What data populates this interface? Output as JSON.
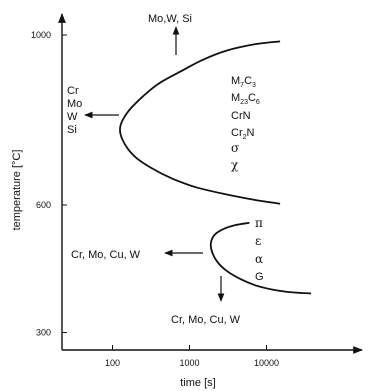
{
  "chart_data": {
    "type": "line",
    "xlabel": "time [s]",
    "ylabel": "temperature [°C]",
    "x_scale": "log",
    "xlim": [
      10,
      50000
    ],
    "ylim": [
      200,
      1100
    ],
    "x_ticks": [
      {
        "value": 100,
        "label": "100"
      },
      {
        "value": 1000,
        "label": "1000"
      },
      {
        "value": 10000,
        "label": "10000"
      }
    ],
    "y_ticks": [
      {
        "value": 300,
        "label": "300"
      },
      {
        "value": 600,
        "label": "600"
      },
      {
        "value": 1000,
        "label": "1000"
      }
    ],
    "series": [
      {
        "points": [
          [
            15000,
            985
          ],
          [
            7000,
            978
          ],
          [
            3000,
            963
          ],
          [
            1500,
            942
          ],
          [
            800,
            916
          ],
          [
            400,
            886
          ],
          [
            250,
            856
          ],
          [
            170,
            826
          ],
          [
            135,
            799
          ],
          [
            125,
            778
          ],
          [
            133,
            756
          ],
          [
            160,
            731
          ],
          [
            210,
            709
          ],
          [
            320,
            687
          ],
          [
            600,
            662
          ],
          [
            1200,
            642
          ],
          [
            3000,
            625
          ],
          [
            7000,
            612
          ],
          [
            15000,
            603
          ]
        ]
      },
      {
        "points": [
          [
            6000,
            558
          ],
          [
            4000,
            553
          ],
          [
            2800,
            544
          ],
          [
            2150,
            531
          ],
          [
            1900,
            512
          ],
          [
            1960,
            490
          ],
          [
            2300,
            466
          ],
          [
            3100,
            444
          ],
          [
            4700,
            425
          ],
          [
            7500,
            410
          ],
          [
            12000,
            401
          ],
          [
            20000,
            395
          ],
          [
            38000,
            392
          ]
        ]
      }
    ],
    "annotations": {
      "upper_top_text": "Mo,W, Si",
      "upper_left_elements": [
        "Cr",
        "Mo",
        "W",
        "Si"
      ],
      "upper_phases": [
        {
          "main": "M",
          "sub1": "7",
          "mid": "C",
          "sub2": "3"
        },
        {
          "main": "M",
          "sub1": "23",
          "mid": "C",
          "sub2": "6"
        },
        {
          "main": "CrN",
          "sub1": "",
          "mid": "",
          "sub2": ""
        },
        {
          "main": "Cr",
          "sub1": "2",
          "mid": "N",
          "sub2": ""
        }
      ],
      "upper_greek": [
        "σ",
        "χ"
      ],
      "lower_left_text": "Cr, Mo, Cu, W",
      "lower_bottom_text": "Cr, Mo, Cu, W",
      "lower_phases": [
        "π",
        "ε",
        "α",
        "G"
      ]
    }
  }
}
